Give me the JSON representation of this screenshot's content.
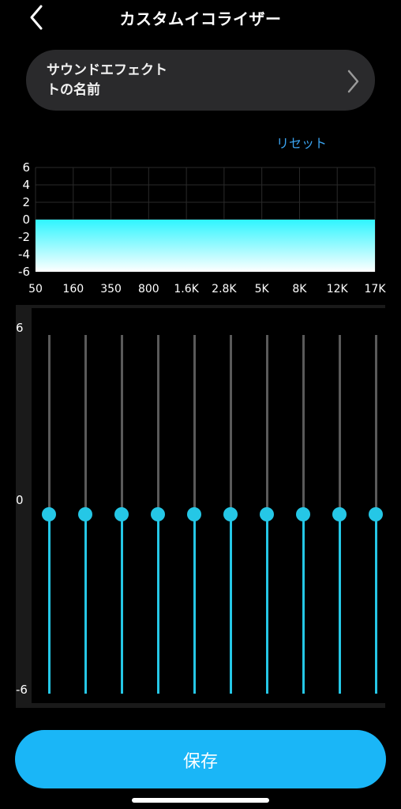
{
  "header": {
    "title": "カスタムイコライザー",
    "back_icon": "chevron-left-icon"
  },
  "sound_effect": {
    "name_line1": "サウンドエフェクト",
    "name_line2": "トの名前",
    "chevron_icon": "chevron-right-icon"
  },
  "reset_label": "リセット",
  "colors": {
    "accent": "#25c7e6",
    "save": "#1ab6f7",
    "link": "#3aa3f0",
    "fill_top": "#2ff5ff",
    "fill_bottom": "#ffffff"
  },
  "chart_data": {
    "type": "area",
    "x": [
      "50",
      "160",
      "350",
      "800",
      "1.6K",
      "2.8K",
      "5K",
      "8K",
      "12K",
      "17K"
    ],
    "y": [
      0,
      0,
      0,
      0,
      0,
      0,
      0,
      0,
      0,
      0
    ],
    "y_ticks": [
      "6",
      "4",
      "2",
      "0",
      "-2",
      "-4",
      "-6"
    ],
    "ylim": [
      -6,
      6
    ],
    "grid": true
  },
  "eq": {
    "y_labels": {
      "top": "6",
      "middle": "0",
      "bottom": "-6"
    },
    "bands": [
      {
        "label": "50",
        "gain": 0
      },
      {
        "label": "160",
        "gain": 0
      },
      {
        "label": "350",
        "gain": 0
      },
      {
        "label": "800",
        "gain": 0
      },
      {
        "label": "1.6K",
        "gain": 0
      },
      {
        "label": "2.8K",
        "gain": 0
      },
      {
        "label": "5K",
        "gain": 0
      },
      {
        "label": "8K",
        "gain": 0
      },
      {
        "label": "12K",
        "gain": 0
      },
      {
        "label": "17K",
        "gain": 0
      }
    ]
  },
  "save_label": "保存"
}
